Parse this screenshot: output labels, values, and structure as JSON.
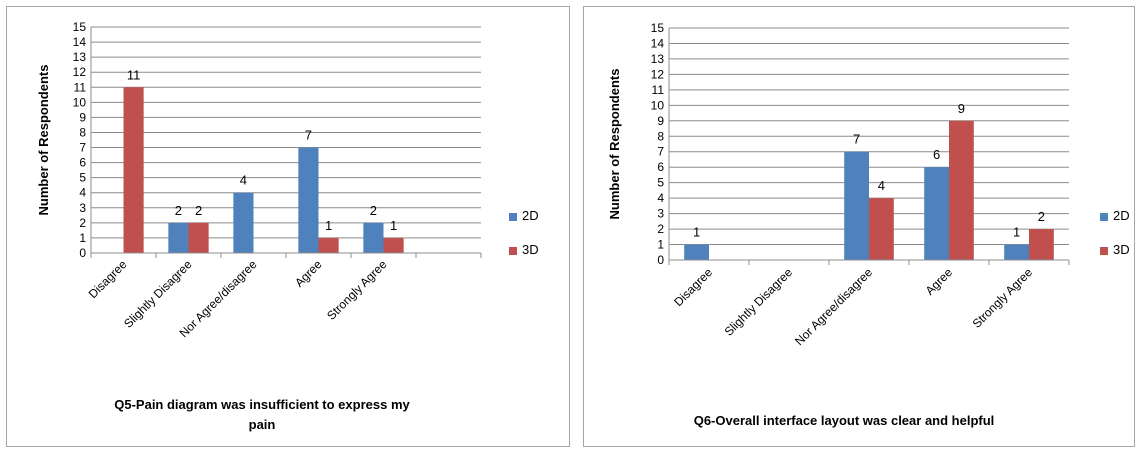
{
  "charts": [
    {
      "type": "bar",
      "title": "Q5-Pain diagram was insufficient to express my pain",
      "ylabel": "Number of Respondents",
      "xlabel": "",
      "ylim": [
        0,
        15
      ],
      "yticks": [
        0,
        1,
        2,
        3,
        4,
        5,
        6,
        7,
        8,
        9,
        10,
        11,
        12,
        13,
        14,
        15
      ],
      "grid": true,
      "legend_position": "right",
      "categories": [
        "Disagree",
        "Slightly Disagree",
        "Nor Agree/disagree",
        "Agree",
        "Strongly Agree",
        ""
      ],
      "series": [
        {
          "name": "2D",
          "color": "#4f81bd",
          "values": [
            0,
            2,
            4,
            7,
            2,
            null
          ],
          "labels": [
            "",
            "2",
            "4",
            "7",
            "2",
            ""
          ]
        },
        {
          "name": "3D",
          "color": "#c0504d",
          "values": [
            11,
            2,
            0,
            1,
            1,
            null
          ],
          "labels": [
            "11",
            "2",
            "",
            "1",
            "1",
            ""
          ]
        }
      ]
    },
    {
      "type": "bar",
      "title": "Q6-Overall interface layout was clear and helpful",
      "ylabel": "Number of Respondents",
      "xlabel": "",
      "ylim": [
        0,
        15
      ],
      "yticks": [
        0,
        1,
        2,
        3,
        4,
        5,
        6,
        7,
        8,
        9,
        10,
        11,
        12,
        13,
        14,
        15
      ],
      "grid": true,
      "legend_position": "right",
      "categories": [
        "Disagree",
        "Slightly Disagree",
        "Nor Agree/disagree",
        "Agree",
        "Strongly Agree"
      ],
      "series": [
        {
          "name": "2D",
          "color": "#4f81bd",
          "values": [
            1,
            0,
            7,
            6,
            1
          ],
          "labels": [
            "1",
            "",
            "7",
            "6",
            "1"
          ]
        },
        {
          "name": "3D",
          "color": "#c0504d",
          "values": [
            0,
            0,
            4,
            9,
            2
          ],
          "labels": [
            "",
            "",
            "4",
            "9",
            "2"
          ]
        }
      ]
    }
  ],
  "chart_data": [
    {
      "type": "bar",
      "title": "Q5-Pain diagram was insufficient to express my pain",
      "ylabel": "Number of Respondents",
      "ylim": [
        0,
        15
      ],
      "categories": [
        "Disagree",
        "Slightly Disagree",
        "Nor Agree/disagree",
        "Agree",
        "Strongly Agree"
      ],
      "series": [
        {
          "name": "2D",
          "values": [
            0,
            2,
            4,
            7,
            2
          ]
        },
        {
          "name": "3D",
          "values": [
            11,
            2,
            0,
            1,
            1
          ]
        }
      ]
    },
    {
      "type": "bar",
      "title": "Q6-Overall interface layout was clear and helpful",
      "ylabel": "Number of Respondents",
      "ylim": [
        0,
        15
      ],
      "categories": [
        "Disagree",
        "Slightly Disagree",
        "Nor Agree/disagree",
        "Agree",
        "Strongly Agree"
      ],
      "series": [
        {
          "name": "2D",
          "values": [
            1,
            0,
            7,
            6,
            1
          ]
        },
        {
          "name": "3D",
          "values": [
            0,
            0,
            4,
            9,
            2
          ]
        }
      ]
    }
  ]
}
